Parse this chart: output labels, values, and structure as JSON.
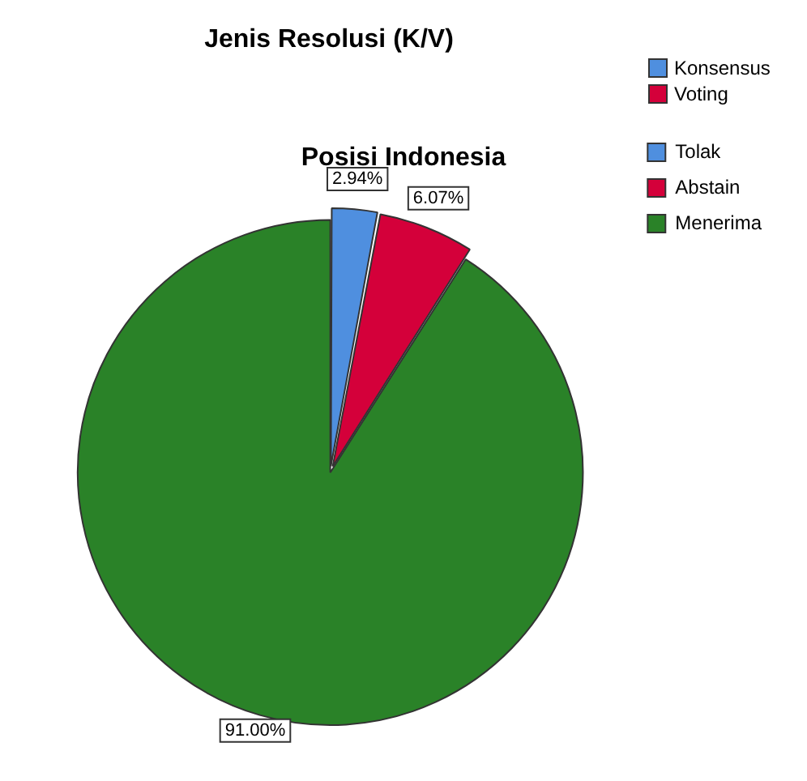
{
  "chart_data": [
    {
      "type": "other",
      "title": "Jenis Resolusi (K/V)",
      "legend": "top right",
      "series": [
        {
          "name": "Konsensus",
          "color": "#4f8fdf"
        },
        {
          "name": "Voting",
          "color": "#d4003a"
        }
      ]
    },
    {
      "type": "pie",
      "title": "Posisi Indonesia",
      "legend": "right",
      "categories": [
        "Tolak",
        "Abstain",
        "Menerima"
      ],
      "values": [
        2.94,
        6.07,
        91.0
      ],
      "colors": [
        "#4f8fdf",
        "#d4003a",
        "#2a8228"
      ],
      "value_labels": [
        "2.94%",
        "6.07%",
        "91.00%"
      ]
    }
  ]
}
